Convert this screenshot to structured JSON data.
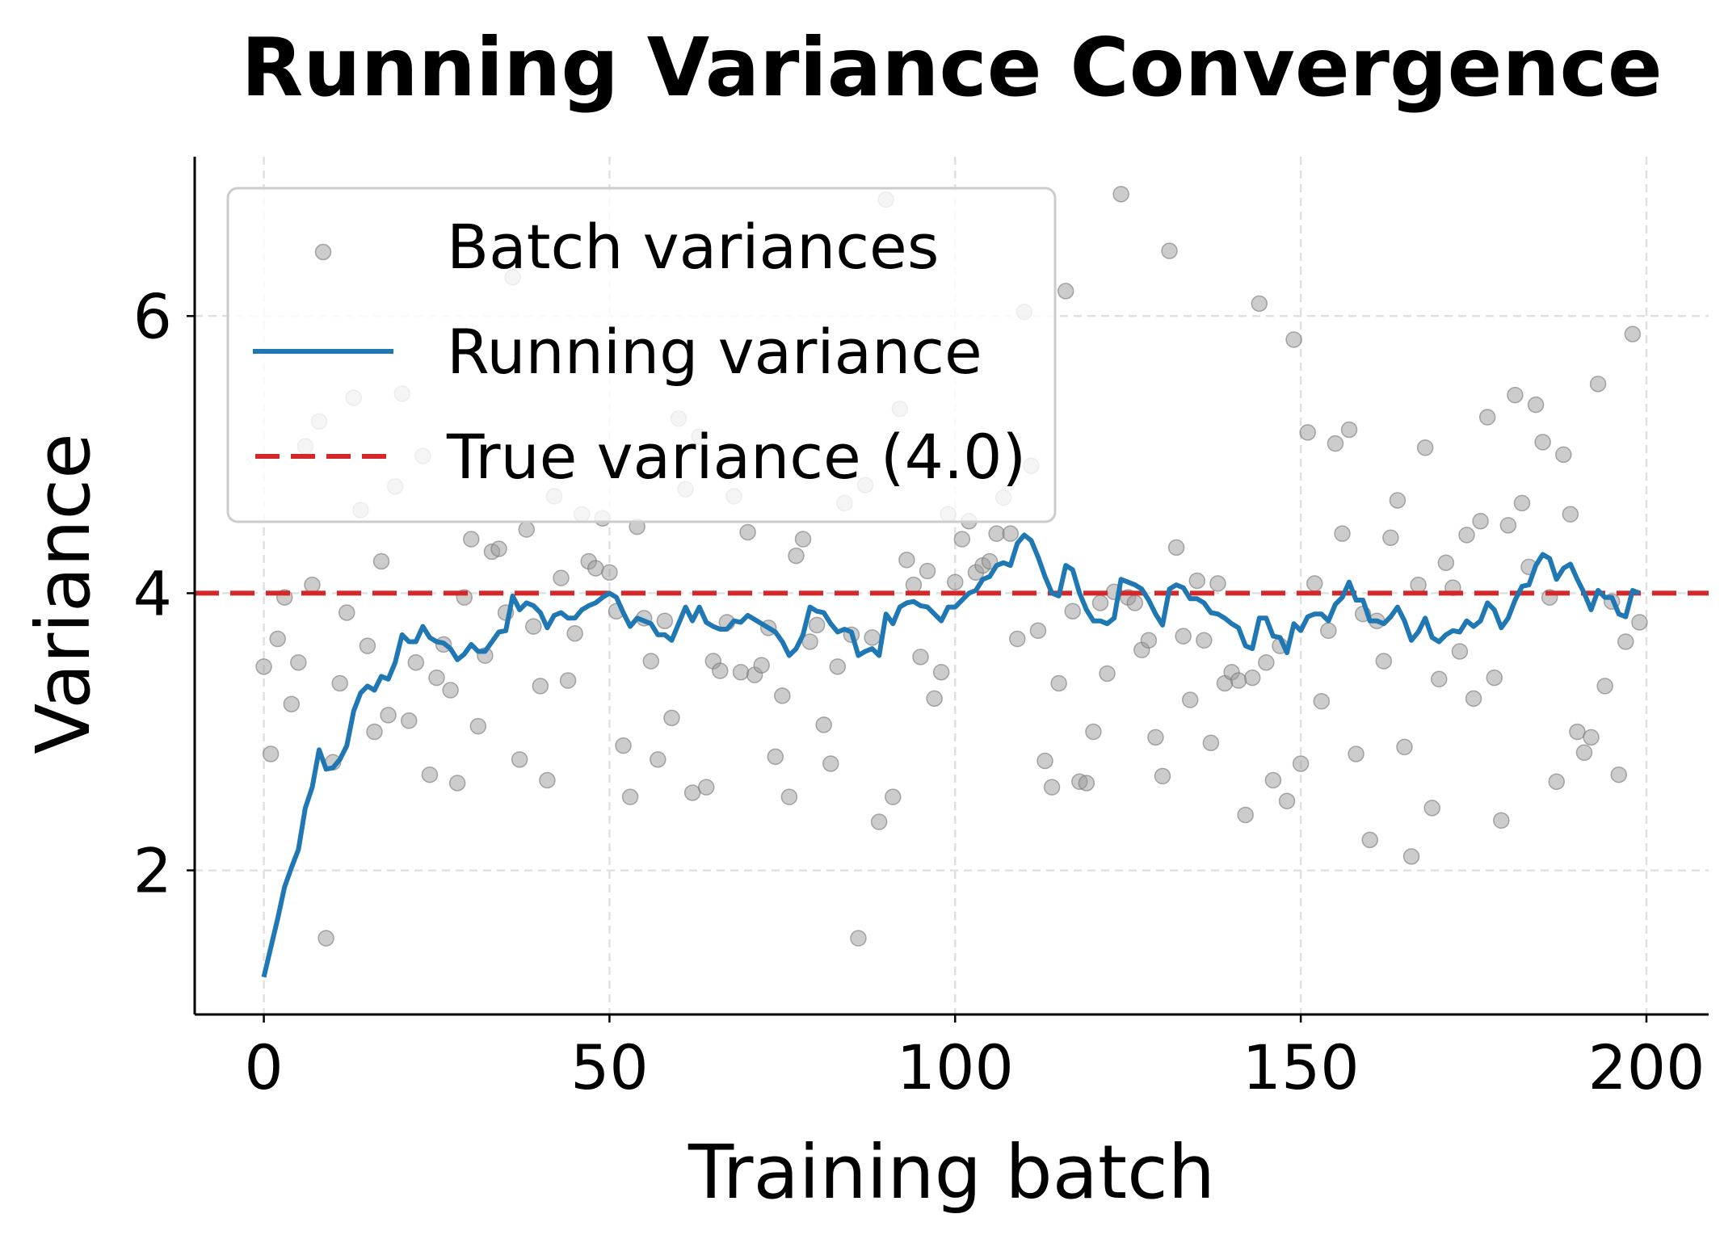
{
  "chart_data": {
    "type": "scatter+line",
    "title": "Running Variance Convergence",
    "xlabel": "Training batch",
    "ylabel": "Variance",
    "xlim": [
      -10,
      209
    ],
    "ylim": [
      0.96,
      7.15
    ],
    "xticks": [
      0,
      50,
      100,
      150,
      200
    ],
    "yticks": [
      2,
      4,
      6
    ],
    "grid": true,
    "legend_placement": "upper-left",
    "series": [
      {
        "name": "Batch variances",
        "kind": "scatter",
        "color": "#999999",
        "x_start": 0,
        "values": [
          3.47,
          2.84,
          3.67,
          3.97,
          3.2,
          3.5,
          5.06,
          4.06,
          5.24,
          1.51,
          2.78,
          3.35,
          3.86,
          5.41,
          4.6,
          3.62,
          3.0,
          4.23,
          3.12,
          4.77,
          5.44,
          3.08,
          3.5,
          4.99,
          2.69,
          3.39,
          3.63,
          3.3,
          2.63,
          3.97,
          4.39,
          3.04,
          3.55,
          4.3,
          4.32,
          3.86,
          6.28,
          2.8,
          4.46,
          3.76,
          3.33,
          2.65,
          4.7,
          4.11,
          3.37,
          3.71,
          4.57,
          4.23,
          4.18,
          4.54,
          4.15,
          3.87,
          2.9,
          2.53,
          4.48,
          3.82,
          3.51,
          2.8,
          3.8,
          3.1,
          5.26,
          4.75,
          2.56,
          5.13,
          2.6,
          3.51,
          3.44,
          3.79,
          4.7,
          3.43,
          4.44,
          3.41,
          3.48,
          3.75,
          2.82,
          3.26,
          2.53,
          4.27,
          4.39,
          3.65,
          3.77,
          3.05,
          2.77,
          3.47,
          4.65,
          3.7,
          1.51,
          4.78,
          3.68,
          2.35,
          6.84,
          2.53,
          5.33,
          4.24,
          4.06,
          3.54,
          4.16,
          3.24,
          3.43,
          4.57,
          4.08,
          4.39,
          4.52,
          4.15,
          4.2,
          4.23,
          4.43,
          4.69,
          4.43,
          3.67,
          6.03,
          4.92,
          3.73,
          2.79,
          2.6,
          3.35,
          6.18,
          3.87,
          2.64,
          2.63,
          3.0,
          3.93,
          3.42,
          4.01,
          6.88,
          3.97,
          3.93,
          3.59,
          3.66,
          2.96,
          2.68,
          6.47,
          4.33,
          3.69,
          3.23,
          4.09,
          3.66,
          2.92,
          4.07,
          3.35,
          3.43,
          3.37,
          2.4,
          3.39,
          6.09,
          3.5,
          2.65,
          3.62,
          2.5,
          5.83,
          2.77,
          5.16,
          4.07,
          3.22,
          3.73,
          5.08,
          4.43,
          5.18,
          2.84,
          3.85,
          2.22,
          3.8,
          3.51,
          4.4,
          4.67,
          2.89,
          2.1,
          4.06,
          5.05,
          2.45,
          3.38,
          4.22,
          4.04,
          3.58,
          4.42,
          3.24,
          4.52,
          5.27,
          3.39,
          2.36,
          4.49,
          5.43,
          4.65,
          4.19,
          5.36,
          5.09,
          3.97,
          2.64,
          5.0,
          4.57,
          3.0,
          2.85,
          2.96,
          5.51,
          3.33,
          3.94,
          2.69,
          3.65,
          5.87,
          3.79
        ]
      },
      {
        "name": "Running variance",
        "kind": "line",
        "color": "#1f77b4",
        "x_start": 0,
        "values": [
          1.23,
          1.44,
          1.65,
          1.88,
          2.02,
          2.15,
          2.45,
          2.6,
          2.87,
          2.73,
          2.74,
          2.8,
          2.9,
          3.15,
          3.28,
          3.33,
          3.3,
          3.4,
          3.38,
          3.5,
          3.7,
          3.65,
          3.65,
          3.76,
          3.68,
          3.65,
          3.64,
          3.6,
          3.52,
          3.56,
          3.63,
          3.58,
          3.58,
          3.65,
          3.72,
          3.73,
          3.98,
          3.88,
          3.93,
          3.91,
          3.86,
          3.75,
          3.84,
          3.86,
          3.82,
          3.82,
          3.88,
          3.91,
          3.93,
          3.97,
          4.0,
          3.97,
          3.86,
          3.76,
          3.82,
          3.8,
          3.78,
          3.7,
          3.7,
          3.66,
          3.78,
          3.9,
          3.8,
          3.9,
          3.79,
          3.76,
          3.74,
          3.74,
          3.8,
          3.79,
          3.84,
          3.81,
          3.78,
          3.75,
          3.72,
          3.65,
          3.55,
          3.6,
          3.7,
          3.9,
          3.87,
          3.86,
          3.78,
          3.72,
          3.74,
          3.72,
          3.55,
          3.58,
          3.6,
          3.55,
          3.85,
          3.78,
          3.9,
          3.93,
          3.94,
          3.91,
          3.9,
          3.85,
          3.8,
          3.9,
          3.9,
          3.95,
          4.0,
          4.02,
          4.1,
          4.12,
          4.2,
          4.22,
          4.2,
          4.36,
          4.42,
          4.38,
          4.26,
          4.12,
          4.0,
          3.98,
          4.2,
          4.17,
          4.0,
          3.88,
          3.8,
          3.8,
          3.78,
          3.82,
          4.1,
          4.08,
          4.06,
          4.03,
          3.95,
          3.85,
          3.77,
          4.03,
          4.06,
          4.04,
          3.96,
          3.96,
          3.93,
          3.86,
          3.85,
          3.82,
          3.78,
          3.75,
          3.62,
          3.6,
          3.82,
          3.82,
          3.69,
          3.68,
          3.57,
          3.78,
          3.73,
          3.83,
          3.85,
          3.85,
          3.8,
          3.92,
          3.97,
          4.08,
          3.95,
          3.95,
          3.8,
          3.8,
          3.78,
          3.83,
          3.9,
          3.8,
          3.66,
          3.72,
          3.82,
          3.68,
          3.65,
          3.7,
          3.73,
          3.72,
          3.8,
          3.76,
          3.8,
          3.93,
          3.88,
          3.75,
          3.82,
          3.95,
          4.05,
          4.06,
          4.2,
          4.28,
          4.25,
          4.1,
          4.18,
          4.21,
          4.1,
          4.0,
          3.88,
          4.02,
          3.97,
          3.97,
          3.85,
          3.83,
          4.02,
          4.0
        ]
      },
      {
        "name": "True variance (4.0)",
        "kind": "hline",
        "color": "#d62728",
        "y": 4.0
      }
    ]
  }
}
